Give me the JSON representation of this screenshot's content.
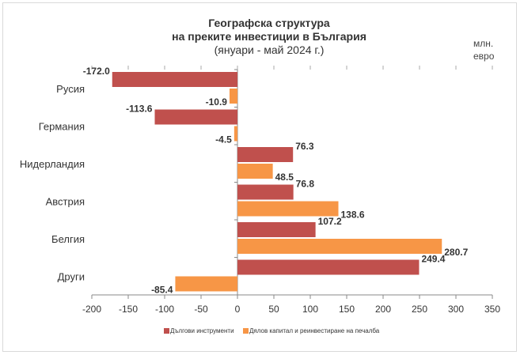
{
  "chart_data": {
    "type": "bar",
    "orientation": "horizontal",
    "title": [
      "Географска структура",
      "на преките инвестиции в България",
      "(януари - май 2024 г.)"
    ],
    "unit": [
      "млн.",
      "евро"
    ],
    "categories": [
      "Русия",
      "Германия",
      "Нидерландия",
      "Австрия",
      "Белгия",
      "Други"
    ],
    "series": [
      {
        "name": "Дългови инструменти",
        "color": "#c0504d",
        "values": [
          -172.0,
          -113.6,
          76.3,
          76.8,
          107.2,
          249.4
        ]
      },
      {
        "name": "Дялов капитал и реинвестиране на печалба",
        "color": "#f79646",
        "values": [
          -10.9,
          -4.5,
          48.5,
          138.6,
          280.7,
          -85.4
        ]
      }
    ],
    "xlim": [
      -200,
      350
    ],
    "xticks": [
      -200,
      -150,
      -100,
      -50,
      0,
      50,
      100,
      150,
      200,
      250,
      300,
      350
    ],
    "grid": false,
    "legend": "bottom"
  }
}
